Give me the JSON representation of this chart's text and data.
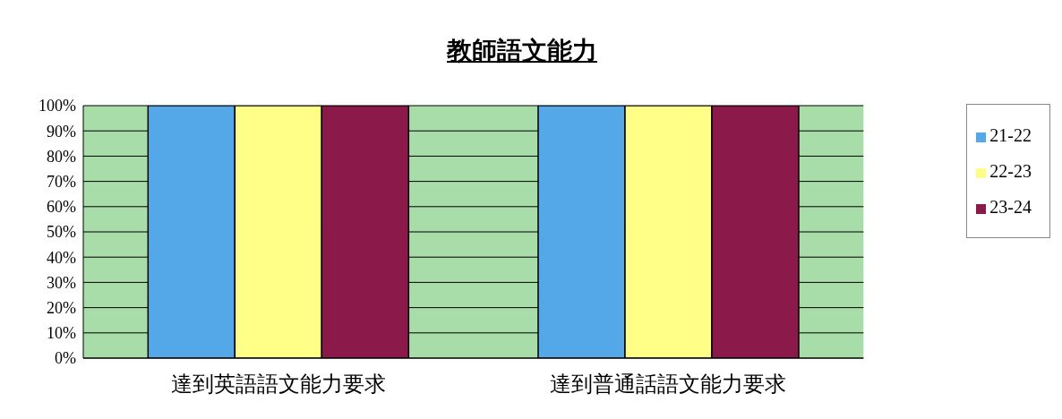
{
  "chart_data": {
    "type": "bar",
    "title": "教師語文能力",
    "categories": [
      "達到英語語文能力要求",
      "達到普通話語文能力要求"
    ],
    "series": [
      {
        "name": "21-22",
        "color": "#55a8e8",
        "values": [
          100,
          100
        ]
      },
      {
        "name": "22-23",
        "color": "#ffff88",
        "values": [
          100,
          100
        ]
      },
      {
        "name": "23-24",
        "color": "#8b1a4a",
        "values": [
          100,
          100
        ]
      }
    ],
    "ylim": [
      0,
      100
    ],
    "yticks": [
      {
        "value": 0,
        "label": "0%"
      },
      {
        "value": 10,
        "label": "10%"
      },
      {
        "value": 20,
        "label": "20%"
      },
      {
        "value": 30,
        "label": "30%"
      },
      {
        "value": 40,
        "label": "40%"
      },
      {
        "value": 50,
        "label": "50%"
      },
      {
        "value": 60,
        "label": "60%"
      },
      {
        "value": 70,
        "label": "70%"
      },
      {
        "value": 80,
        "label": "80%"
      },
      {
        "value": 90,
        "label": "90%"
      },
      {
        "value": 100,
        "label": "100%"
      }
    ],
    "grid": "y",
    "legend": "right"
  }
}
